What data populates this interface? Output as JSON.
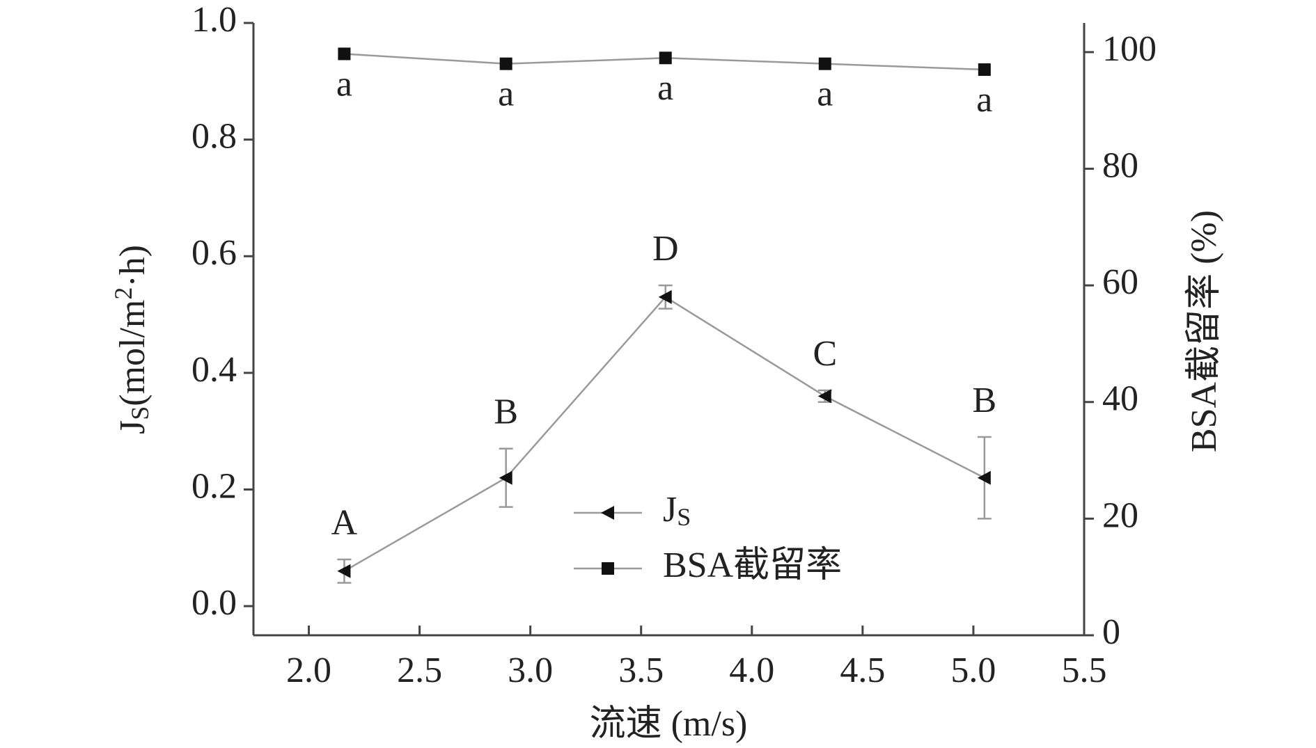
{
  "chart_data": {
    "type": "line",
    "x_label": "流速 (m/s)",
    "y_label": {
      "main": "J",
      "sub": "S",
      "unit_pre": "(mol/m",
      "sup": "2",
      "unit_post": "·h)"
    },
    "y2_label": "BSA截留率 (%)",
    "x": [
      2.16,
      2.89,
      3.61,
      4.33,
      5.05
    ],
    "xlim": [
      1.75,
      5.5
    ],
    "xticks": [
      {
        "value": 2,
        "label": "2.0"
      },
      2.5,
      {
        "value": 3,
        "label": "3.0"
      },
      3.5,
      {
        "value": 4,
        "label": "4.0"
      },
      4.5,
      {
        "value": 5,
        "label": "5.0"
      },
      5.5
    ],
    "ylim": [
      -0.05,
      1.0
    ],
    "yticks": [
      {
        "value": 0,
        "label": "0.0"
      },
      0.2,
      0.4,
      0.6,
      0.8,
      {
        "value": 1,
        "label": "1.0"
      }
    ],
    "y2lim": [
      0,
      105
    ],
    "y2ticks": [
      0,
      20,
      40,
      60,
      80,
      100
    ],
    "series": [
      {
        "name": "J",
        "name_subscript": "S",
        "color": "#9a9a9a",
        "marker_color": "#111111",
        "marker": "triangle-left",
        "values": [
          0.06,
          0.22,
          0.53,
          0.36,
          0.22
        ],
        "errors": [
          0.02,
          0.05,
          0.02,
          0.01,
          0.07
        ],
        "point_labels": [
          "A",
          "B",
          "D",
          "C",
          "B"
        ]
      },
      {
        "name": "BSA截留率",
        "color": "#9a9a9a",
        "marker_color": "#111111",
        "marker": "square",
        "axis": "y2",
        "values": [
          99.7,
          98,
          99,
          98,
          97
        ],
        "point_labels": [
          "a",
          "a",
          "a",
          "a",
          "a"
        ]
      }
    ]
  }
}
